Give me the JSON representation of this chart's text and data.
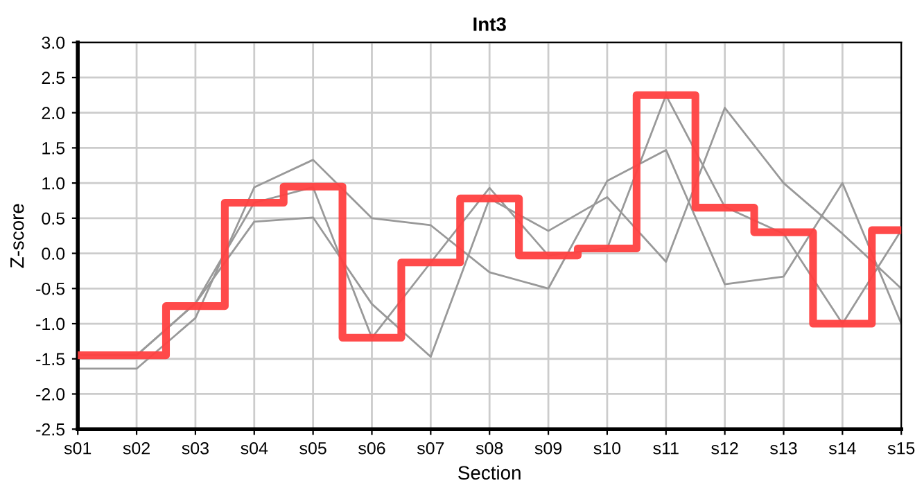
{
  "chart_data": {
    "type": "line",
    "title": "Int3",
    "xlabel": "Section",
    "ylabel": "Z-score",
    "categories": [
      "s01",
      "s02",
      "s03",
      "s04",
      "s05",
      "s06",
      "s07",
      "s08",
      "s09",
      "s10",
      "s11",
      "s12",
      "s13",
      "s14",
      "s15"
    ],
    "series": [
      {
        "color": "#999999",
        "values": [
          -1.45,
          -1.45,
          -0.71,
          0.72,
          0.94,
          -1.2,
          -0.13,
          0.93,
          -0.03,
          0.07,
          2.25,
          0.66,
          0.28,
          -1.0,
          0.33
        ]
      },
      {
        "color": "#999999",
        "values": [
          -1.64,
          -1.64,
          -0.92,
          0.94,
          1.33,
          0.5,
          0.4,
          -0.27,
          -0.5,
          1.03,
          1.47,
          -0.44,
          -0.33,
          1.0,
          -1.0
        ]
      },
      {
        "color": "#999999",
        "values": [
          -1.45,
          -1.45,
          -0.71,
          0.45,
          0.51,
          -0.72,
          -1.47,
          0.78,
          0.32,
          0.8,
          -0.12,
          2.07,
          1.0,
          0.28,
          -0.5
        ]
      },
      {
        "type": "step",
        "color": "#ff4040",
        "values": [
          -1.45,
          -1.45,
          -0.75,
          0.72,
          0.95,
          -1.2,
          -0.13,
          0.78,
          -0.03,
          0.07,
          2.25,
          0.65,
          0.3,
          -1.0,
          0.33
        ]
      }
    ],
    "ylim": [
      -2.5,
      3.0
    ],
    "yticks": [
      -2.5,
      {
        "value": -2,
        "label": "-2.0"
      },
      -1.5,
      {
        "value": -1,
        "label": "-1.0"
      },
      -0.5,
      {
        "value": 0,
        "label": "0.0"
      },
      0.5,
      {
        "value": 1,
        "label": "1.0"
      },
      1.5,
      {
        "value": 2,
        "label": "2.0"
      },
      2.5,
      {
        "value": 3,
        "label": "3.0"
      }
    ],
    "grid": true,
    "legend": false,
    "marker": "none",
    "line_style": "solid"
  }
}
